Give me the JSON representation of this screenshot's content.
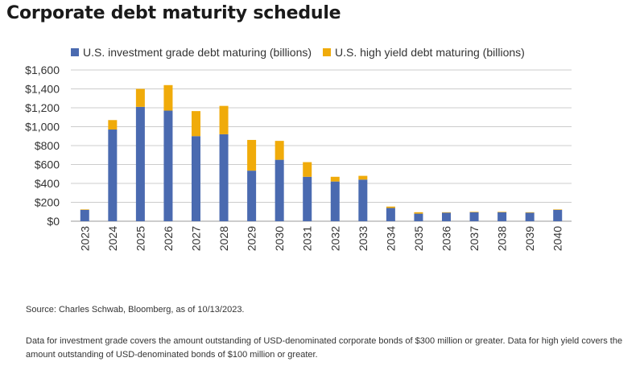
{
  "title": "Corporate debt maturity schedule",
  "source": "Source: Charles Schwab, Bloomberg, as of 10/13/2023.",
  "note": "Data for investment grade covers the amount outstanding of USD-denominated corporate bonds of $300 million or greater. Data for high yield covers the amount outstanding of USD-denominated bonds of $100 million or greater.",
  "colors": {
    "investment_grade": "#4a6ab0",
    "high_yield": "#f0ab0a",
    "grid": "#cccccc",
    "axis": "#999999"
  },
  "chart_data": {
    "type": "bar",
    "stacked": true,
    "categories": [
      "2023",
      "2024",
      "2025",
      "2026",
      "2027",
      "2028",
      "2029",
      "2030",
      "2031",
      "2032",
      "2033",
      "2034",
      "2035",
      "2036",
      "2037",
      "2038",
      "2039",
      "2040"
    ],
    "series": [
      {
        "name": "U.S. investment grade debt maturing (billions)",
        "color": "#4a6ab0",
        "values": [
          120,
          970,
          1210,
          1170,
          900,
          920,
          535,
          650,
          470,
          420,
          440,
          140,
          80,
          90,
          95,
          95,
          90,
          120
        ]
      },
      {
        "name": "U.S. high yield debt maturing (billions)",
        "color": "#f0ab0a",
        "values": [
          5,
          100,
          190,
          270,
          265,
          300,
          325,
          200,
          155,
          50,
          40,
          15,
          15,
          5,
          5,
          5,
          5,
          5
        ]
      }
    ],
    "yticks": [
      "$0",
      "$200",
      "$400",
      "$600",
      "$800",
      "$1,000",
      "$1,200",
      "$1,400",
      "$1,600"
    ],
    "ylim": [
      0,
      1600
    ],
    "grid": true,
    "legend": "top-left"
  }
}
